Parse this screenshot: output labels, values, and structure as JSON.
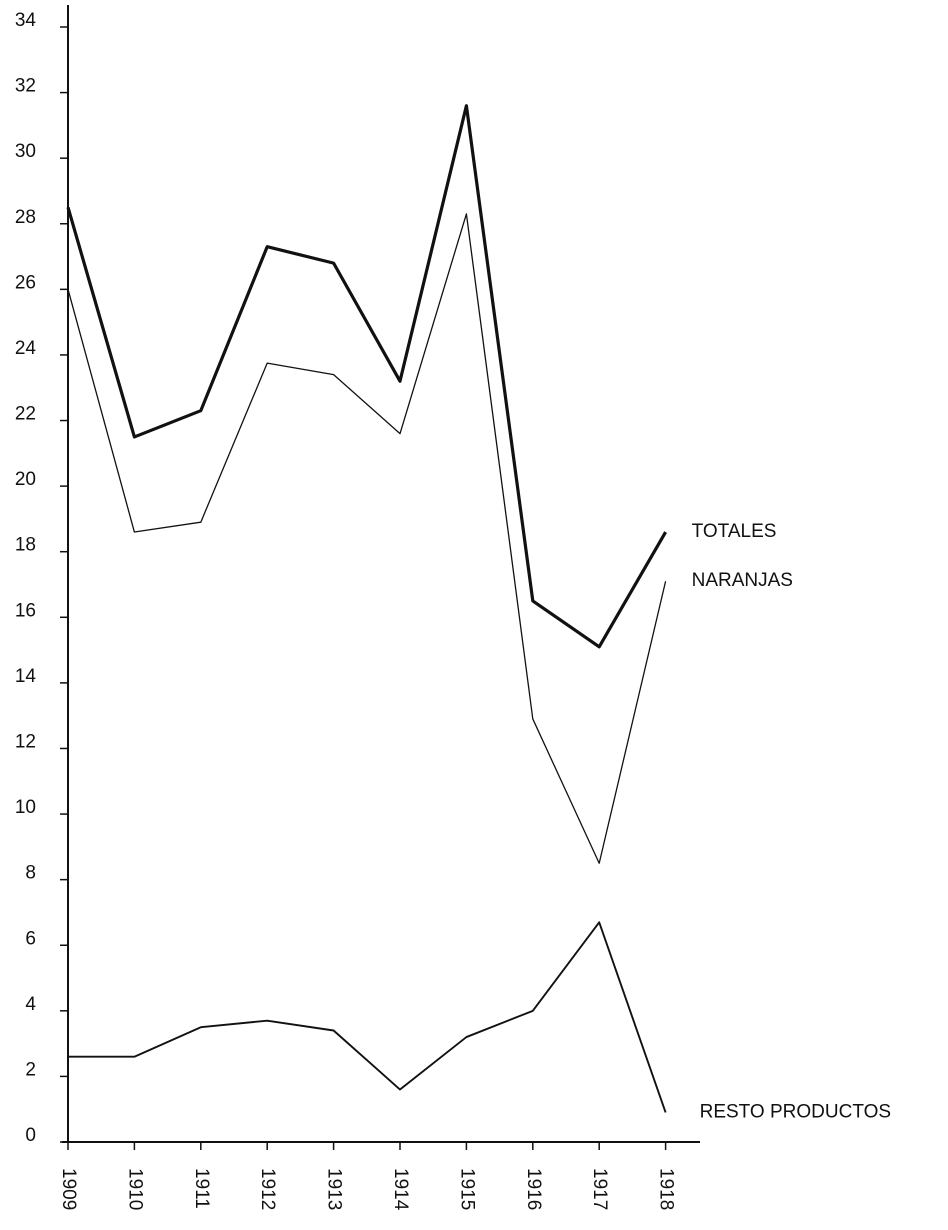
{
  "chart_data": {
    "type": "line",
    "categories": [
      "1909",
      "1910",
      "1911",
      "1912",
      "1913",
      "1914",
      "1915",
      "1916",
      "1917",
      "1918"
    ],
    "series": [
      {
        "name": "TOTALES",
        "color": "#111111",
        "values": [
          28.5,
          21.5,
          22.3,
          27.3,
          26.8,
          23.2,
          31.6,
          16.5,
          15.1,
          18.6
        ]
      },
      {
        "name": "NARANJAS",
        "color": "#111111",
        "values": [
          26.0,
          18.6,
          18.9,
          23.75,
          23.4,
          21.6,
          28.3,
          12.9,
          8.5,
          17.1
        ]
      },
      {
        "name": "RESTO PRODUCTOS",
        "color": "#111111",
        "values": [
          2.6,
          2.6,
          3.5,
          3.7,
          3.4,
          1.6,
          3.2,
          4.0,
          6.7,
          0.9
        ]
      }
    ],
    "ylim": [
      0,
      34
    ],
    "yticks": [
      0,
      2,
      4,
      6,
      8,
      10,
      12,
      14,
      16,
      18,
      20,
      22,
      24,
      26,
      28,
      30,
      32,
      34
    ],
    "grid": false
  }
}
